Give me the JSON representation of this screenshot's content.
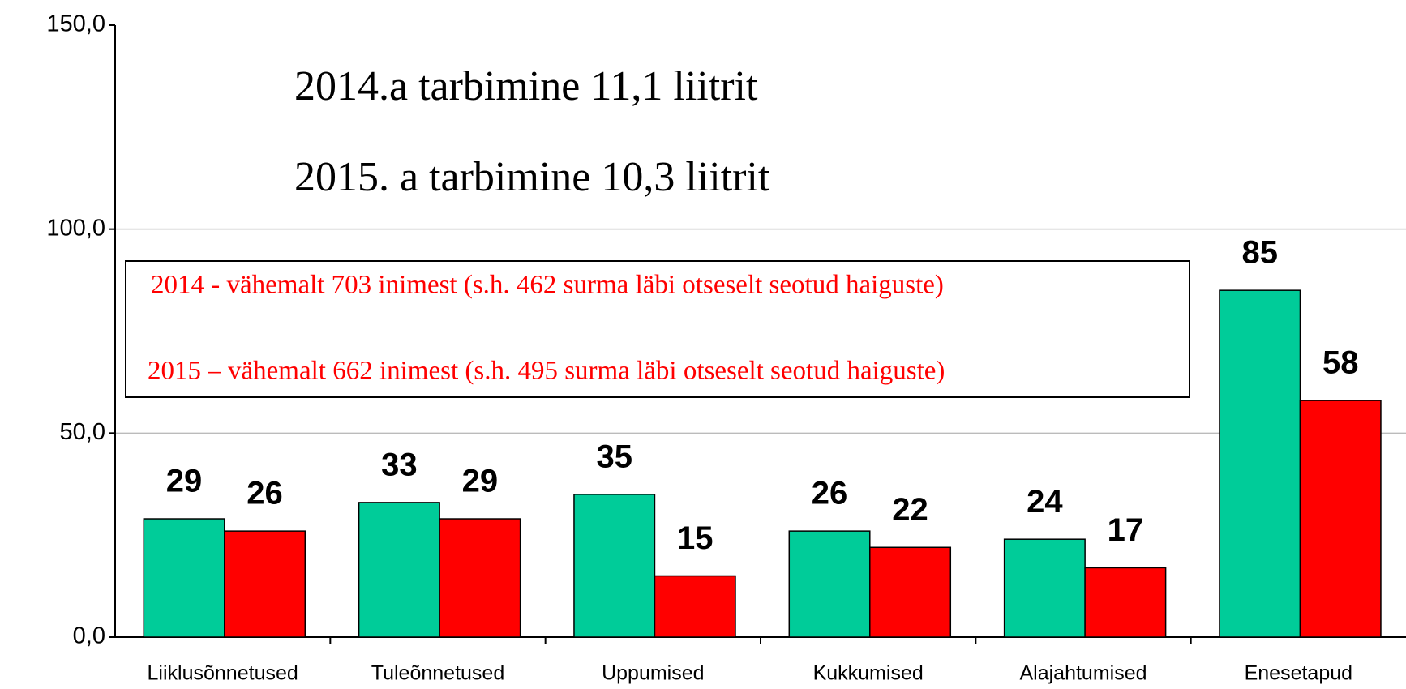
{
  "chart_data": {
    "type": "bar",
    "categories": [
      "Liiklusõnnetused",
      "Tuleõnnetused",
      "Uppumised",
      "Kukkumised",
      "Alajahtumised",
      "Enesetapud"
    ],
    "series": [
      {
        "color": "#00cc99",
        "values": [
          29,
          33,
          35,
          26,
          24,
          85
        ]
      },
      {
        "color": "#ff0000",
        "values": [
          26,
          29,
          15,
          22,
          17,
          58
        ]
      }
    ],
    "ylim": [
      0,
      150
    ],
    "yticks": [
      {
        "value": 0,
        "label": "0,0"
      },
      {
        "value": 50,
        "label": "50,0"
      },
      {
        "value": 100,
        "label": "100,0"
      },
      {
        "value": 150,
        "label": "150,0"
      }
    ],
    "grid": true,
    "annotations": [
      "2014.a  tarbimine 11,1 liitrit",
      "2015. a tarbimine 10,3 liitrit",
      "2014  - vähemalt 703 inimest (s.h. 462 surma läbi otseselt seotud haiguste)",
      "2015 – vähemalt 662 inimest (s.h. 495 surma läbi otseselt seotud haiguste)"
    ]
  }
}
